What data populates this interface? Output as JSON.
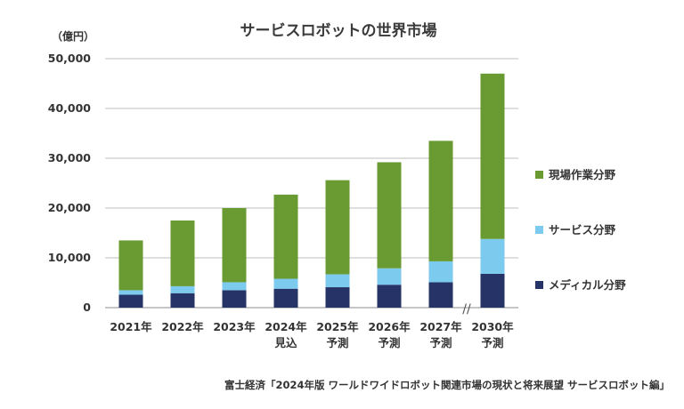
{
  "title": "サービスロボットの世界市場",
  "source": "富士経済「2024年版 ワールドワイドロボット関連市場の現状と将来展望 サービスロボット編」",
  "colors": {
    "field": "#6a9a32",
    "service": "#7ccaee",
    "medical": "#253366"
  },
  "chart_data": {
    "type": "bar",
    "stacked": true,
    "title": "サービスロボットの世界市場",
    "unit": "（億円）",
    "categories": [
      [
        "2021年"
      ],
      [
        "2022年"
      ],
      [
        "2023年"
      ],
      [
        "2024年",
        "見込"
      ],
      [
        "2025年",
        "予測"
      ],
      [
        "2026年",
        "予測"
      ],
      [
        "2027年",
        "予測"
      ],
      [
        "2030年",
        "予測"
      ]
    ],
    "yticks": [
      "0",
      "10,000",
      "20,000",
      "30,000",
      "40,000",
      "50,000"
    ],
    "ylim": [
      0,
      50000
    ],
    "axis_break_before_last": true,
    "axis_break_mark": "//",
    "grid": true,
    "legend_position": "right",
    "series": [
      {
        "name": "メディカル分野",
        "color": "#253366",
        "values": [
          2600,
          2900,
          3500,
          3800,
          4100,
          4600,
          5100,
          6800
        ]
      },
      {
        "name": "サービス分野",
        "color": "#7ccaee",
        "values": [
          900,
          1400,
          1600,
          2000,
          2600,
          3300,
          4200,
          7000
        ]
      },
      {
        "name": "現場作業分野",
        "color": "#6a9a32",
        "values": [
          10000,
          13200,
          14900,
          16900,
          18900,
          21300,
          24200,
          33200
        ]
      }
    ],
    "legend_order": [
      "現場作業分野",
      "サービス分野",
      "メディカル分野"
    ]
  }
}
